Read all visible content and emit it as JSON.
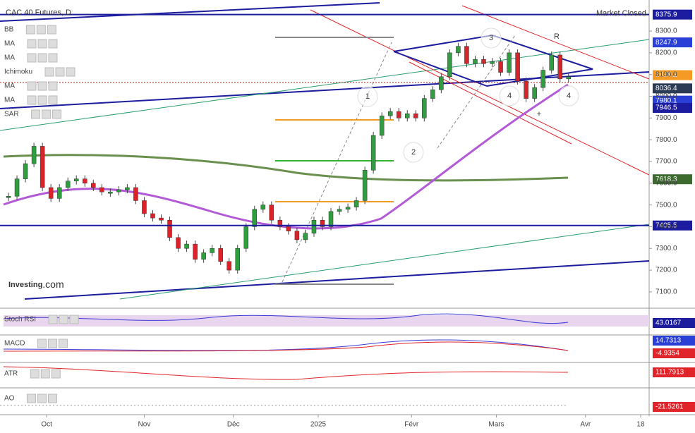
{
  "chart_data": {
    "type": "candlestick",
    "title": "CAC 40 Futures, D",
    "status": "Market Closed",
    "logo": {
      "brand": "Investing",
      "suffix": ".com"
    },
    "overlays": [
      "BB",
      "MA",
      "MA",
      "Ichimoku",
      "MA",
      "MA",
      "SAR"
    ],
    "x": [
      2,
      4,
      6,
      8,
      10,
      12,
      14,
      16,
      18,
      20,
      22,
      24,
      26,
      28,
      30,
      32,
      34,
      36,
      38,
      40,
      42,
      44,
      46,
      48,
      50,
      52,
      54,
      56,
      58,
      60,
      62,
      64,
      66,
      68,
      70,
      72,
      74,
      76,
      78,
      80,
      82,
      84,
      86,
      88,
      90,
      92,
      94,
      96,
      98,
      100,
      102,
      104,
      106,
      108,
      110,
      112,
      114,
      116,
      118,
      120,
      122,
      124,
      126,
      128,
      130,
      132,
      134
    ],
    "values": [
      7540,
      7620,
      7690,
      7770,
      7580,
      7530,
      7580,
      7610,
      7620,
      7600,
      7580,
      7560,
      7560,
      7570,
      7580,
      7520,
      7460,
      7440,
      7430,
      7350,
      7300,
      7320,
      7250,
      7280,
      7300,
      7240,
      7200,
      7300,
      7400,
      7480,
      7500,
      7430,
      7400,
      7380,
      7340,
      7370,
      7430,
      7400,
      7470,
      7480,
      7490,
      7520,
      7660,
      7820,
      7910,
      7930,
      7900,
      7920,
      7900,
      7990,
      8030,
      8090,
      8200,
      8230,
      8150,
      8170,
      8150,
      8160,
      8110,
      8200,
      8070,
      7990,
      8040,
      8120,
      8190,
      8080,
      8090
    ],
    "up_color": "#2e9e3e",
    "down_color": "#d8232a",
    "xlim": [
      0,
      153
    ],
    "ylim": [
      7064,
      8443
    ],
    "xticks": [
      {
        "value": 11,
        "label": "Oct"
      },
      {
        "value": 34,
        "label": "Nov"
      },
      {
        "value": 55,
        "label": "Déc"
      },
      {
        "value": 75,
        "label": "2025"
      },
      {
        "value": 97,
        "label": "Févr"
      },
      {
        "value": 117,
        "label": "Mars"
      },
      {
        "value": 138,
        "label": "Avr"
      },
      {
        "value": 151,
        "label": "18"
      }
    ],
    "yticks": [
      {
        "value": 7100,
        "label": "7100.0"
      },
      {
        "value": 7200,
        "label": "7200.0"
      },
      {
        "value": 7300,
        "label": "7300.0"
      },
      {
        "value": 7400,
        "label": "7400.0"
      },
      {
        "value": 7500,
        "label": "7500.0"
      },
      {
        "value": 7600,
        "label": "7600.0"
      },
      {
        "value": 7700,
        "label": "7700.0"
      },
      {
        "value": 7800,
        "label": "7800.0"
      },
      {
        "value": 7900,
        "label": "7900.0"
      },
      {
        "value": 8000,
        "label": "8000.0"
      },
      {
        "value": 8100,
        "label": "8100.0"
      },
      {
        "value": 8200,
        "label": "8200.0"
      },
      {
        "value": 8300,
        "label": "8300.0"
      }
    ],
    "price_labels": [
      {
        "value": 8375.9,
        "color": "#1c1c9e"
      },
      {
        "value": 8247.9,
        "color": "#2a3fd6"
      },
      {
        "value": 8097.2,
        "color": "#f59a23"
      },
      {
        "value": 8036.4,
        "color": "#2b3a55"
      },
      {
        "value": 7980.1,
        "color": "#2a3fd6"
      },
      {
        "value": 7946.5,
        "color": "#1c1c9e"
      },
      {
        "value": 7618.3,
        "color": "#3d6b2f"
      },
      {
        "value": 7405.5,
        "color": "#1c1c9e"
      }
    ],
    "annotations": [
      "1",
      "2",
      "3",
      "4",
      "4",
      "R",
      "+"
    ],
    "indicators": [
      {
        "name": "Stoch RSI",
        "values": [
          43.0167
        ],
        "colors": [
          "#1c1c9e"
        ]
      },
      {
        "name": "MACD",
        "values": [
          14.7313,
          -4.9354
        ],
        "colors": [
          "#2a3fd6",
          "#e0242a"
        ]
      },
      {
        "name": "ATR",
        "values": [
          111.7913
        ],
        "colors": [
          "#e0242a"
        ]
      },
      {
        "name": "AO",
        "values": [
          -21.5261
        ],
        "colors": [
          "#e0242a"
        ]
      }
    ]
  }
}
